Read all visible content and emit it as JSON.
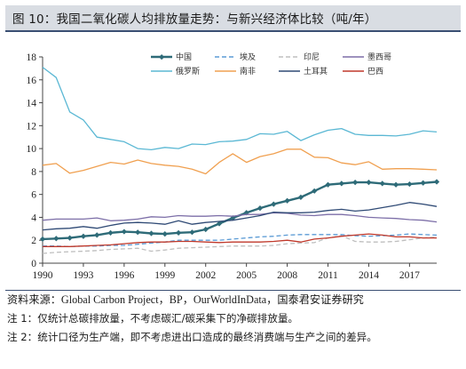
{
  "title": "图 10：我国二氧化碳人均排放量走势：与新兴经济体比较（吨/年）",
  "footer": {
    "source": "资料来源：Global Carbon Project，BP，OurWorldInData，国泰君安证券研究",
    "note1": "注 1：仅统计总碳排放量，不考虑碳汇/碳采集下的净碳排放量。",
    "note2": "注 2：统计口径为生产端，即不考虑进出口造成的最终消费端与生产之间的差异。"
  },
  "chart_data": {
    "type": "line",
    "title": "",
    "xlabel": "",
    "ylabel": "",
    "xlim": [
      1990,
      2019
    ],
    "ylim": [
      0,
      18
    ],
    "x_ticks": [
      1990,
      1993,
      1996,
      1999,
      2002,
      2005,
      2008,
      2011,
      2014,
      2017
    ],
    "y_ticks": [
      0,
      2,
      4,
      6,
      8,
      10,
      12,
      14,
      16,
      18
    ],
    "grid": false,
    "legend_position": "top",
    "x": [
      1990,
      1991,
      1992,
      1993,
      1994,
      1995,
      1996,
      1997,
      1998,
      1999,
      2000,
      2001,
      2002,
      2003,
      2004,
      2005,
      2006,
      2007,
      2008,
      2009,
      2010,
      2011,
      2012,
      2013,
      2014,
      2015,
      2016,
      2017,
      2018,
      2019
    ],
    "series": [
      {
        "name": "中国",
        "color": "#2e6b78",
        "style": "solid-marker",
        "values": [
          2.1,
          2.15,
          2.2,
          2.35,
          2.45,
          2.65,
          2.75,
          2.7,
          2.6,
          2.55,
          2.65,
          2.7,
          2.95,
          3.45,
          3.95,
          4.4,
          4.8,
          5.15,
          5.45,
          5.75,
          6.3,
          6.85,
          6.95,
          7.05,
          7.05,
          6.95,
          6.85,
          6.9,
          7.0,
          7.1
        ]
      },
      {
        "name": "埃及",
        "color": "#5b9bd5",
        "style": "dashed",
        "values": [
          1.5,
          1.5,
          1.45,
          1.5,
          1.5,
          1.55,
          1.55,
          1.65,
          1.75,
          1.85,
          2.0,
          2.0,
          2.0,
          2.0,
          2.1,
          2.2,
          2.3,
          2.35,
          2.45,
          2.5,
          2.5,
          2.5,
          2.5,
          2.4,
          2.35,
          2.4,
          2.45,
          2.55,
          2.5,
          2.45
        ]
      },
      {
        "name": "印尼",
        "color": "#bfbfbf",
        "style": "dashed",
        "values": [
          0.85,
          0.95,
          1.0,
          1.05,
          1.1,
          1.2,
          1.25,
          1.3,
          1.05,
          1.15,
          1.3,
          1.35,
          1.4,
          1.45,
          1.5,
          1.5,
          1.5,
          1.55,
          1.7,
          1.75,
          1.8,
          2.2,
          2.4,
          1.9,
          1.85,
          1.85,
          1.9,
          2.05,
          2.2,
          2.3
        ]
      },
      {
        "name": "墨西哥",
        "color": "#7d6fa8",
        "style": "solid",
        "values": [
          3.75,
          3.85,
          3.85,
          3.85,
          3.95,
          3.7,
          3.75,
          3.85,
          4.05,
          4.0,
          4.15,
          4.1,
          4.1,
          4.15,
          4.1,
          4.25,
          4.25,
          4.4,
          4.35,
          4.2,
          4.15,
          4.25,
          4.25,
          4.15,
          4.0,
          3.95,
          3.9,
          3.8,
          3.75,
          3.6
        ]
      },
      {
        "name": "俄罗斯",
        "color": "#5bb8d4",
        "style": "solid",
        "values": [
          17.1,
          16.2,
          13.2,
          12.5,
          11.0,
          10.8,
          10.6,
          10.0,
          9.9,
          10.1,
          10.0,
          10.4,
          10.35,
          10.6,
          10.65,
          10.8,
          11.3,
          11.25,
          11.5,
          10.7,
          11.2,
          11.6,
          11.75,
          11.25,
          11.15,
          11.15,
          11.1,
          11.25,
          11.55,
          11.45
        ]
      },
      {
        "name": "南非",
        "color": "#f0a050",
        "style": "solid",
        "values": [
          8.55,
          8.7,
          7.85,
          8.1,
          8.45,
          8.8,
          8.65,
          9.0,
          8.7,
          8.55,
          8.45,
          8.2,
          7.8,
          8.8,
          9.55,
          8.8,
          9.3,
          9.55,
          9.95,
          9.95,
          9.25,
          9.2,
          8.75,
          8.6,
          8.85,
          8.2,
          8.25,
          8.25,
          8.2,
          8.15
        ]
      },
      {
        "name": "土耳其",
        "color": "#2f4a75",
        "style": "solid",
        "values": [
          2.9,
          3.0,
          3.05,
          3.2,
          3.05,
          3.3,
          3.5,
          3.55,
          3.5,
          3.4,
          3.7,
          3.4,
          3.55,
          3.65,
          3.75,
          3.95,
          4.15,
          4.45,
          4.4,
          4.4,
          4.45,
          4.6,
          4.7,
          4.55,
          4.65,
          4.85,
          5.05,
          5.3,
          5.15,
          4.95
        ]
      },
      {
        "name": "巴西",
        "color": "#c0392b",
        "style": "solid",
        "values": [
          1.45,
          1.45,
          1.45,
          1.5,
          1.55,
          1.6,
          1.7,
          1.8,
          1.85,
          1.85,
          1.9,
          1.9,
          1.85,
          1.8,
          1.85,
          1.85,
          1.85,
          1.9,
          2.0,
          1.85,
          2.1,
          2.2,
          2.35,
          2.45,
          2.55,
          2.45,
          2.3,
          2.3,
          2.2,
          2.2
        ]
      }
    ]
  }
}
